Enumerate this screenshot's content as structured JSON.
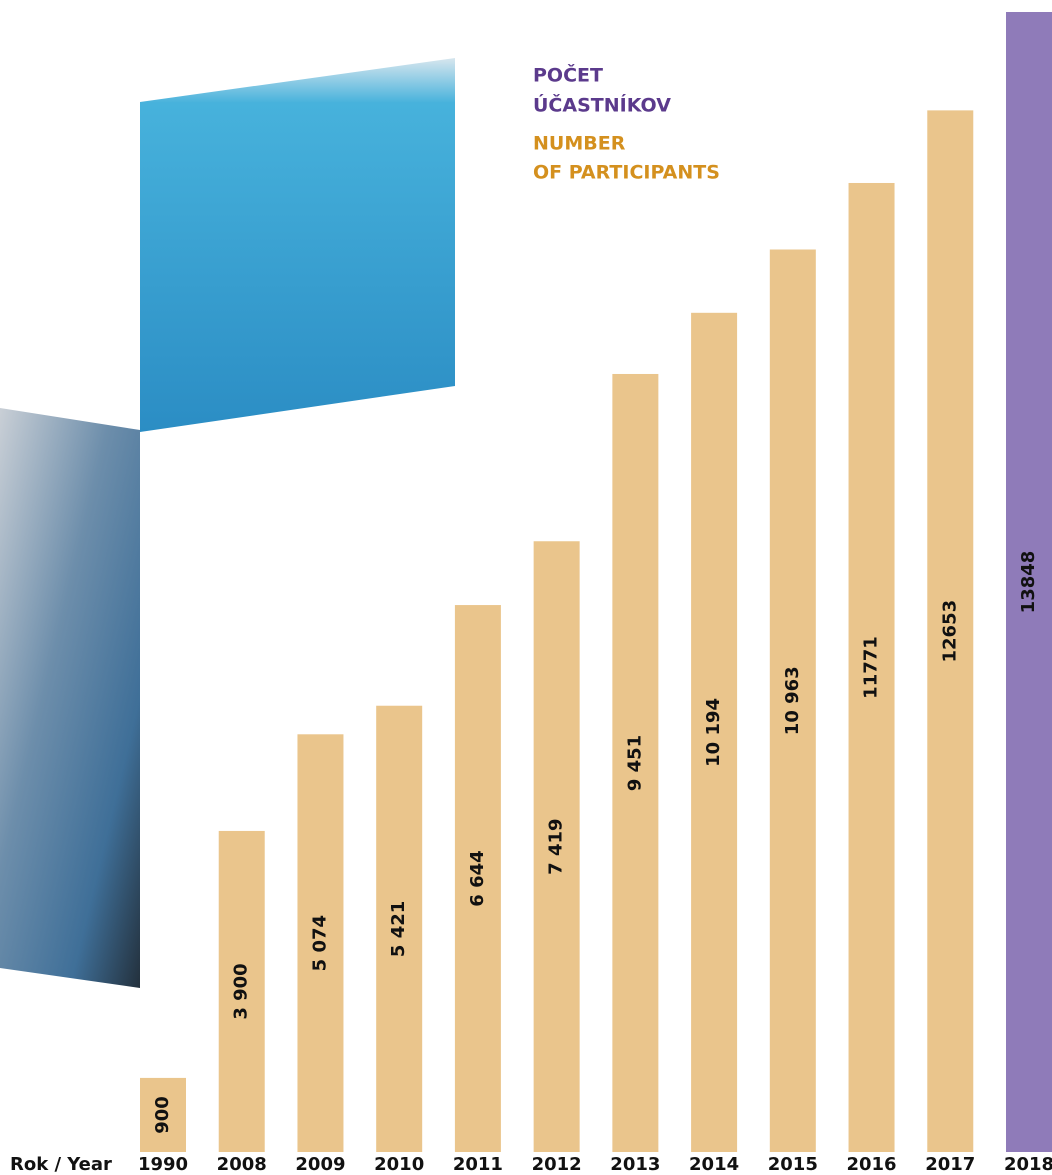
{
  "chart_data": {
    "type": "bar",
    "title": [
      "POČET",
      "ÚČASTNÍKOV"
    ],
    "subtitle": [
      "NUMBER",
      "OF PARTICIPANTS"
    ],
    "x_label": "Rok / Year",
    "categories": [
      "1990",
      "2008",
      "2009",
      "2010",
      "2011",
      "2012",
      "2013",
      "2014",
      "2015",
      "2016",
      "2017",
      "2018"
    ],
    "values": [
      900,
      3900,
      5074,
      5421,
      6644,
      7419,
      9451,
      10194,
      10963,
      11771,
      12653,
      13848
    ],
    "value_labels": [
      "900",
      "3 900",
      "5 074",
      "5 421",
      "6 644",
      "7 419",
      "9 451",
      "10 194",
      "10 963",
      "11771",
      "12653",
      "13848"
    ],
    "colors": [
      "#eac58c",
      "#eac58c",
      "#eac58c",
      "#eac58c",
      "#eac58c",
      "#eac58c",
      "#eac58c",
      "#eac58c",
      "#eac58c",
      "#eac58c",
      "#eac58c",
      "#8f7bb9"
    ],
    "label_colors": [
      "#111111",
      "#111111",
      "#111111",
      "#111111",
      "#111111",
      "#111111",
      "#111111",
      "#111111",
      "#111111",
      "#111111",
      "#111111",
      "#ffffff"
    ],
    "category_colors": [
      "#111111",
      "#111111",
      "#111111",
      "#111111",
      "#111111",
      "#111111",
      "#111111",
      "#111111",
      "#111111",
      "#111111",
      "#111111",
      "#8f7bb9"
    ]
  }
}
